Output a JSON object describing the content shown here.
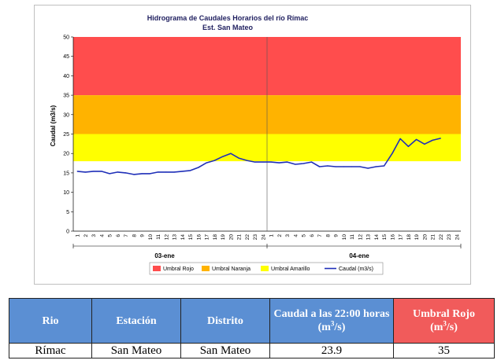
{
  "chart_data": {
    "type": "line",
    "title": "Hidrograma de Caudales Horarios del río Rímac",
    "subtitle": "Est. San Mateo",
    "ylabel": "Caudal  (m3/s)",
    "ylim": [
      0,
      50
    ],
    "yticks": [
      0,
      5,
      10,
      15,
      20,
      25,
      30,
      35,
      40,
      45,
      50
    ],
    "hour_ticks": [
      "1",
      "2",
      "3",
      "4",
      "5",
      "6",
      "7",
      "8",
      "9",
      "10",
      "11",
      "12",
      "13",
      "14",
      "15",
      "16",
      "17",
      "18",
      "19",
      "20",
      "21",
      "22",
      "23",
      "24"
    ],
    "days": [
      "03-ene",
      "04-ene"
    ],
    "thresholds": [
      {
        "name": "Umbral Rojo",
        "from": 35,
        "to": 50,
        "color": "#ff4d4d"
      },
      {
        "name": "Umbral Naranja",
        "from": 25,
        "to": 35,
        "color": "#ffb300"
      },
      {
        "name": "Umbral Amarillo",
        "from": 18,
        "to": 25,
        "color": "#ffff00"
      }
    ],
    "series": [
      {
        "name": "Caudal (m3/s)",
        "color": "#1f2fb8",
        "values": [
          15.4,
          15.2,
          15.4,
          15.4,
          14.8,
          15.2,
          15.0,
          14.6,
          14.8,
          14.8,
          15.2,
          15.2,
          15.2,
          15.4,
          15.6,
          16.4,
          17.6,
          18.2,
          19.2,
          20.0,
          18.8,
          18.2,
          17.8,
          17.8,
          17.8,
          17.6,
          17.8,
          17.2,
          17.4,
          17.8,
          16.6,
          16.8,
          16.6,
          16.6,
          16.6,
          16.6,
          16.2,
          16.6,
          16.8,
          20.0,
          23.8,
          21.8,
          23.6,
          22.4,
          23.4,
          23.9
        ]
      }
    ],
    "legend": [
      "Umbral Rojo",
      "Umbral Naranja",
      "Umbral Amarillo",
      "Caudal (m3/s)"
    ],
    "legend_position": "bottom"
  },
  "table": {
    "headers": [
      "Rio",
      "Estación",
      "Distrito",
      "Caudal a las 22:00 horas",
      "Umbral Rojo"
    ],
    "units": {
      "caudal": "(m",
      "umbral": "(m"
    },
    "unit_sup": "3",
    "unit_tail": "/s)",
    "row": [
      "Rímac",
      "San Mateo",
      "San Mateo",
      "23.9",
      "35"
    ]
  }
}
